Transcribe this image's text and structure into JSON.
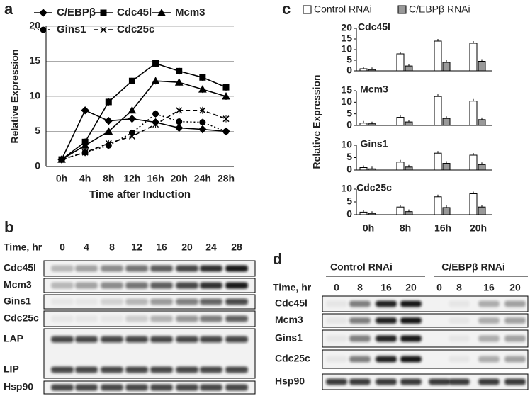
{
  "panel_labels": [
    "a",
    "b",
    "c",
    "d"
  ],
  "chart_data": [
    {
      "type": "line",
      "xlabel": "Time after Induction",
      "ylabel": "Relative Expression",
      "categories": [
        "0h",
        "4h",
        "8h",
        "12h",
        "16h",
        "20h",
        "24h",
        "28h"
      ],
      "ylim": [
        0,
        20
      ],
      "yticks": [
        0,
        5,
        10,
        15,
        20
      ],
      "grid": true,
      "series": [
        {
          "name": "C/EBPβ",
          "color": "#000000",
          "marker": "diamond",
          "line_style": "solid",
          "values": [
            1,
            8,
            6.5,
            6.8,
            6.3,
            5.5,
            5.3,
            5
          ]
        },
        {
          "name": "Cdc45l",
          "color": "#000000",
          "marker": "square",
          "line_style": "solid",
          "values": [
            1,
            3.5,
            9.2,
            12.2,
            14.7,
            13.6,
            12.7,
            11.3
          ]
        },
        {
          "name": "Mcm3",
          "color": "#000000",
          "marker": "triangle",
          "line_style": "solid",
          "values": [
            1,
            3,
            5,
            8,
            12.2,
            12,
            11,
            10
          ]
        },
        {
          "name": "Gins1",
          "color": "#000000",
          "marker": "circle",
          "line_style": "dotted",
          "values": [
            1,
            2,
            3,
            4.8,
            7.5,
            6.4,
            6.3,
            5
          ]
        },
        {
          "name": "Cdc25c",
          "color": "#000000",
          "marker": "x",
          "line_style": "dashed",
          "values": [
            1,
            2,
            3.3,
            4.3,
            6,
            8,
            8,
            6.8
          ]
        }
      ]
    },
    {
      "type": "bar",
      "ylabel": "Relative Expression",
      "categories": [
        "0h",
        "8h",
        "16h",
        "20h"
      ],
      "series": [
        {
          "name": "Control RNAi",
          "color": "#ffffff"
        },
        {
          "name": "C/EBPβ RNAi",
          "color": "#999999"
        }
      ],
      "panels": [
        {
          "title": "Cdc45l",
          "ylim": [
            0,
            20
          ],
          "yticks": [
            0,
            5,
            10,
            15,
            20
          ],
          "values": [
            [
              1,
              8,
              14,
              13
            ],
            [
              0.6,
              2.3,
              4,
              4.5
            ]
          ]
        },
        {
          "title": "Mcm3",
          "ylim": [
            0,
            15
          ],
          "yticks": [
            0,
            5,
            10,
            15
          ],
          "values": [
            [
              1,
              3.5,
              12.5,
              10.5
            ],
            [
              0.7,
              1.5,
              3,
              2.5
            ]
          ]
        },
        {
          "title": "Gins1",
          "ylim": [
            0,
            10
          ],
          "yticks": [
            0,
            5,
            10
          ],
          "values": [
            [
              1,
              3.2,
              6.8,
              6
            ],
            [
              0.5,
              1.2,
              2.7,
              2.2
            ]
          ]
        },
        {
          "title": "Cdc25c",
          "ylim": [
            0,
            10
          ],
          "yticks": [
            0,
            5,
            10
          ],
          "values": [
            [
              1,
              3,
              7,
              8.2
            ],
            [
              0.5,
              1.2,
              2.8,
              3
            ]
          ]
        }
      ]
    }
  ],
  "blots": [
    {
      "time_label": "Time, hr",
      "times": [
        "0",
        "4",
        "8",
        "12",
        "16",
        "20",
        "24",
        "28"
      ],
      "rows": [
        "Cdc45l",
        "Mcm3",
        "Gins1",
        "Cdc25c",
        "LAP",
        "LIP",
        "Hsp90"
      ]
    },
    {
      "groups": [
        "Control RNAi",
        "C/EBPβ RNAi"
      ],
      "time_label": "Time, hr",
      "times": [
        "0",
        "8",
        "16",
        "20",
        "0",
        "8",
        "16",
        "20"
      ],
      "rows": [
        "Cdc45l",
        "Mcm3",
        "Gins1",
        "Cdc25c",
        "Hsp90"
      ]
    }
  ]
}
